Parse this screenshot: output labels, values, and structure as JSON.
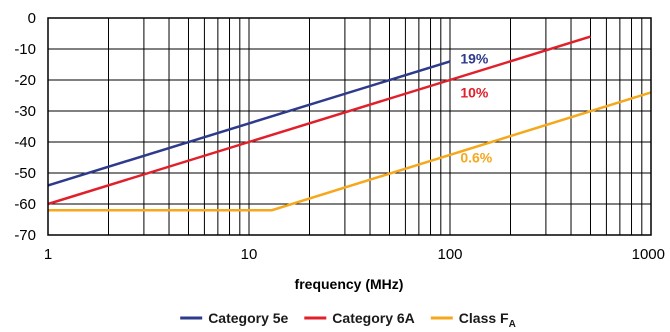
{
  "chart_data": {
    "type": "line",
    "xlabel": "frequency (MHz)",
    "ylabel": "",
    "xscale": "log",
    "xlim": [
      1,
      1000
    ],
    "ylim": [
      -70,
      0
    ],
    "x_ticks": [
      "1",
      "10",
      "100",
      "1000"
    ],
    "y_ticks": [
      "0",
      "-10",
      "-20",
      "-30",
      "-40",
      "-50",
      "-60",
      "-70"
    ],
    "grid": true,
    "legend_position": "bottom-center",
    "series": [
      {
        "name": "Category 5e",
        "color": "#2e3a8c",
        "x": [
          1,
          100
        ],
        "y": [
          -54,
          -14
        ]
      },
      {
        "name": "Category 6A",
        "color": "#e0202a",
        "x": [
          1,
          500
        ],
        "y": [
          -60,
          -6
        ]
      },
      {
        "name": "Class F",
        "name_subscript": "A",
        "color": "#f5a81c",
        "x": [
          1,
          13,
          1000
        ],
        "y": [
          -62,
          -62,
          -24
        ]
      }
    ],
    "annotations": [
      {
        "text": "19%",
        "x": 110,
        "y": -14,
        "color": "#2e3a8c"
      },
      {
        "text": "10%",
        "x": 110,
        "y": -25,
        "color": "#e0202a"
      },
      {
        "text": "0.6%",
        "x": 110,
        "y": -46,
        "color": "#f5a81c"
      }
    ]
  }
}
